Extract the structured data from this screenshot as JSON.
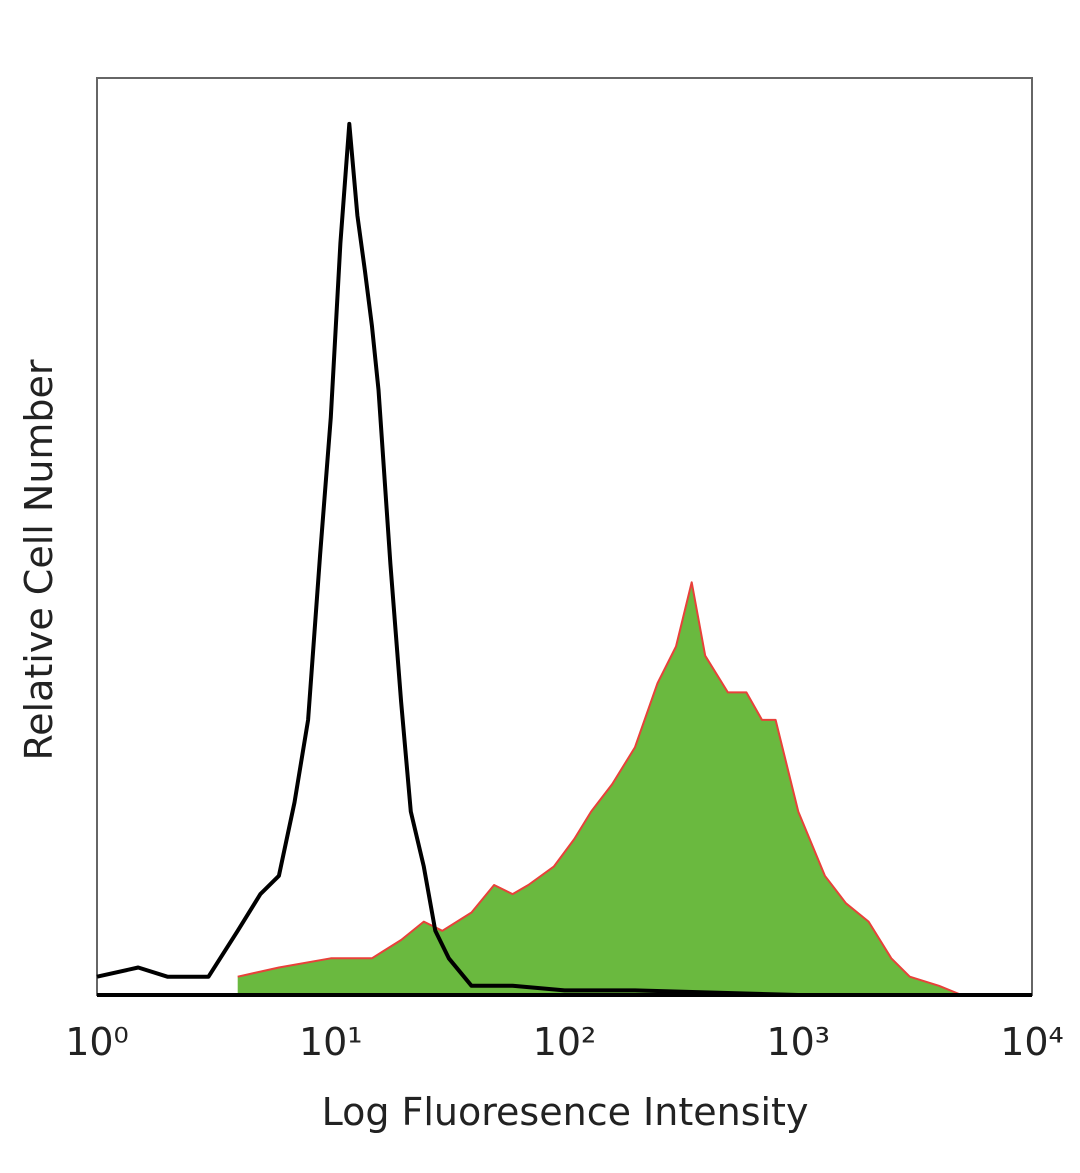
{
  "chart_data": {
    "type": "histogram-overlay",
    "x_label": "Log Fluoresence Intensity",
    "y_label": "Relative Cell Number",
    "xscale": "log",
    "xlim": [
      1,
      10000
    ],
    "ylim": [
      0,
      100
    ],
    "xticks": [
      {
        "value": 1,
        "label": "10⁰"
      },
      {
        "value": 10,
        "label": "10¹"
      },
      {
        "value": 100,
        "label": "10²"
      },
      {
        "value": 1000,
        "label": "10³"
      },
      {
        "value": 10000,
        "label": "10⁴"
      }
    ],
    "grid": false,
    "series": [
      {
        "color": "#000000",
        "filled": false,
        "x": [
          1,
          1.5,
          2,
          3,
          4,
          5,
          6,
          7,
          8,
          9,
          10,
          11,
          12,
          13,
          14,
          15,
          16,
          18,
          20,
          22,
          25,
          28,
          32,
          40,
          60,
          100,
          200,
          1000,
          10000
        ],
        "values": [
          2,
          3,
          2,
          2,
          7,
          11,
          13,
          21,
          30,
          48,
          63,
          82,
          95,
          85,
          79,
          73,
          66,
          47,
          32,
          20,
          14,
          7,
          4,
          1,
          1,
          0.5,
          0.5,
          0,
          0
        ]
      },
      {
        "color": "#e8413a",
        "fill": "#6ab93f",
        "filled": true,
        "x": [
          4,
          6,
          10,
          15,
          20,
          25,
          30,
          40,
          50,
          60,
          70,
          90,
          110,
          130,
          160,
          200,
          250,
          300,
          350,
          400,
          500,
          600,
          700,
          800,
          1000,
          1300,
          1600,
          2000,
          2500,
          3000,
          4000,
          5000,
          10000
        ],
        "values": [
          2,
          3,
          4,
          4,
          6,
          8,
          7,
          9,
          12,
          11,
          12,
          14,
          17,
          20,
          23,
          27,
          34,
          38,
          45,
          37,
          33,
          33,
          30,
          30,
          20,
          13,
          10,
          8,
          4,
          2,
          1,
          0,
          0
        ]
      }
    ]
  }
}
